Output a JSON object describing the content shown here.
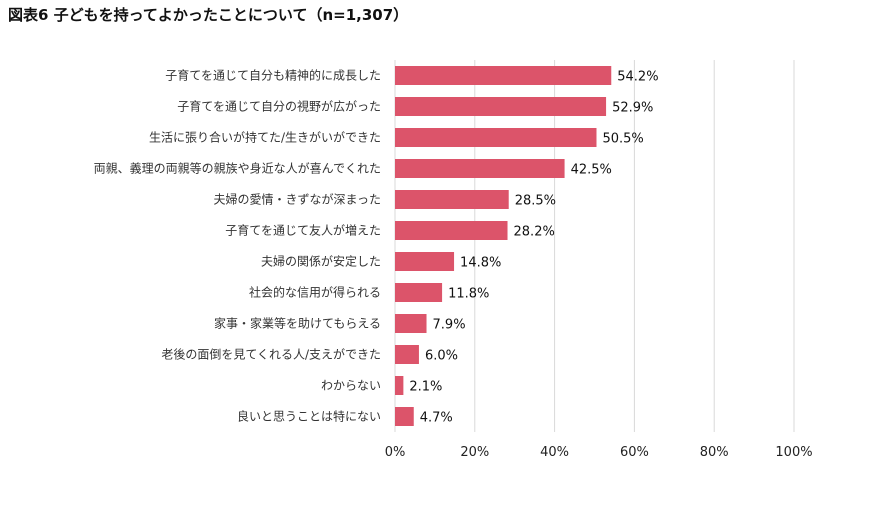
{
  "chart_data": {
    "type": "bar",
    "orientation": "horizontal",
    "title": "図表6 子どもを持ってよかったことについて（n=1,307）",
    "categories": [
      "子育てを通じて自分も精神的に成長した",
      "子育てを通じて自分の視野が広がった",
      "生活に張り合いが持てた/生きがいができた",
      "両親、義理の両親等の親族や身近な人が喜んでくれた",
      "夫婦の愛情・きずなが深まった",
      "子育てを通じて友人が増えた",
      "夫婦の関係が安定した",
      "社会的な信用が得られる",
      "家事・家業等を助けてもらえる",
      "老後の面倒を見てくれる人/支えができた",
      "わからない",
      "良いと思うことは特にない"
    ],
    "values": [
      54.2,
      52.9,
      50.5,
      42.5,
      28.5,
      28.2,
      14.8,
      11.8,
      7.9,
      6.0,
      2.1,
      4.7
    ],
    "value_labels": [
      "54.2%",
      "52.9%",
      "50.5%",
      "42.5%",
      "28.5%",
      "28.2%",
      "14.8%",
      "11.8%",
      "7.9%",
      "6.0%",
      "2.1%",
      "4.7%"
    ],
    "xlim": [
      0,
      100
    ],
    "xticks": [
      0,
      20,
      40,
      60,
      80,
      100
    ],
    "xtick_labels": [
      "0%",
      "20%",
      "40%",
      "60%",
      "80%",
      "100%"
    ],
    "grid": true,
    "bar_color": "#dc546a",
    "grid_color": "#d9d9d9"
  }
}
